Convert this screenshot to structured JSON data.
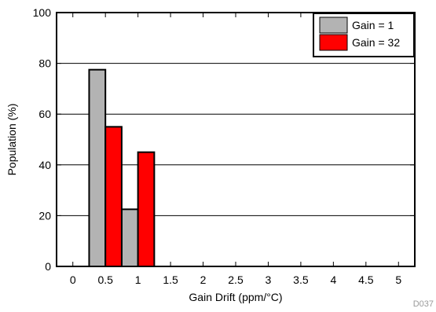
{
  "chart_data": {
    "type": "bar",
    "title": "",
    "xlabel": "Gain Drift (ppm/°C)",
    "ylabel": "Population (%)",
    "x_ticks": [
      "0",
      "0.5",
      "1",
      "1.5",
      "2",
      "2.5",
      "3",
      "3.5",
      "4",
      "4.5",
      "5"
    ],
    "y_ticks": [
      "0",
      "20",
      "40",
      "60",
      "80",
      "100"
    ],
    "xlim": [
      -0.25,
      5.25
    ],
    "ylim": [
      0,
      100
    ],
    "bin_width": 0.25,
    "grid": "horizontal",
    "legend_position": "top-right",
    "series": [
      {
        "name": "Gain = 1",
        "color": "#b3b3b3",
        "x": [
          0.375,
          0.875
        ],
        "values": [
          77.5,
          22.5
        ]
      },
      {
        "name": "Gain = 32",
        "color": "#ff0000",
        "x": [
          0.625,
          1.125
        ],
        "values": [
          55,
          45
        ]
      }
    ]
  },
  "figure_id": "D037"
}
